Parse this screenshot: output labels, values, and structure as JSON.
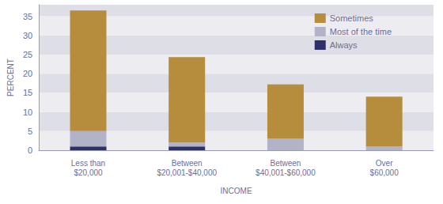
{
  "chart_data": {
    "type": "bar",
    "stacked": true,
    "x_label": "INCOME",
    "y_label": "PERCENT",
    "categories": [
      "Less than\n$20,000",
      "Between\n$20,001-$40,000",
      "Between\n$40,001-$60,000",
      "Over\n$60,000"
    ],
    "series": [
      {
        "name": "Always",
        "color": "#2e2f6b",
        "values": [
          1,
          1,
          0,
          0
        ]
      },
      {
        "name": "Most of the time",
        "color": "#b3b3c8",
        "values": [
          4,
          1,
          3,
          1
        ]
      },
      {
        "name": "Sometimes",
        "color": "#b58d3c",
        "values": [
          31.5,
          22.3,
          14.2,
          13
        ]
      }
    ],
    "ylim": [
      0,
      38
    ],
    "yticks": [
      0,
      5,
      10,
      15,
      20,
      25,
      30,
      35
    ],
    "grid": true,
    "legend": "top-right"
  }
}
